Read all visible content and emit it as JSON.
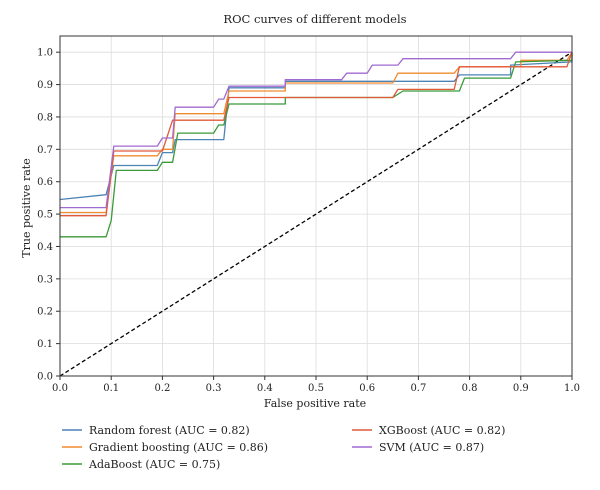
{
  "chart_data": {
    "type": "line",
    "title": "ROC curves of different models",
    "xlabel": "False positive rate",
    "ylabel": "True positive rate",
    "xlim": [
      0,
      1
    ],
    "ylim": [
      0,
      1.05
    ],
    "xticks": [
      "0.0",
      "0.1",
      "0.2",
      "0.3",
      "0.4",
      "0.5",
      "0.6",
      "0.7",
      "0.8",
      "0.9",
      "1.0"
    ],
    "yticks": [
      "0.0",
      "0.1",
      "0.2",
      "0.3",
      "0.4",
      "0.5",
      "0.6",
      "0.7",
      "0.8",
      "0.9",
      "1.0"
    ],
    "grid": true,
    "legend_placement": "bottom",
    "series": [
      {
        "name": "Random forest (AUC = 0.82)",
        "color": "#4c84b5",
        "points": [
          [
            0,
            0.545
          ],
          [
            0.09,
            0.56
          ],
          [
            0.105,
            0.65
          ],
          [
            0.19,
            0.65
          ],
          [
            0.2,
            0.69
          ],
          [
            0.22,
            0.69
          ],
          [
            0.225,
            0.73
          ],
          [
            0.32,
            0.73
          ],
          [
            0.33,
            0.89
          ],
          [
            0.44,
            0.89
          ],
          [
            0.44,
            0.91
          ],
          [
            0.66,
            0.91
          ],
          [
            0.77,
            0.91
          ],
          [
            0.78,
            0.93
          ],
          [
            0.88,
            0.93
          ],
          [
            0.88,
            0.96
          ],
          [
            1,
            0.97
          ],
          [
            1,
            1
          ]
        ]
      },
      {
        "name": "Gradient boosting (AUC = 0.86)",
        "color": "#f08b30",
        "points": [
          [
            0,
            0.505
          ],
          [
            0.09,
            0.505
          ],
          [
            0.105,
            0.68
          ],
          [
            0.19,
            0.68
          ],
          [
            0.2,
            0.7
          ],
          [
            0.22,
            0.7
          ],
          [
            0.225,
            0.81
          ],
          [
            0.32,
            0.81
          ],
          [
            0.33,
            0.88
          ],
          [
            0.44,
            0.88
          ],
          [
            0.44,
            0.905
          ],
          [
            0.65,
            0.905
          ],
          [
            0.66,
            0.935
          ],
          [
            0.77,
            0.935
          ],
          [
            0.78,
            0.955
          ],
          [
            0.9,
            0.955
          ],
          [
            0.9,
            0.975
          ],
          [
            0.99,
            0.975
          ],
          [
            1,
            1
          ]
        ]
      },
      {
        "name": "AdaBoost (AUC = 0.75)",
        "color": "#3a9a3a",
        "points": [
          [
            0,
            0.43
          ],
          [
            0.09,
            0.43
          ],
          [
            0.1,
            0.48
          ],
          [
            0.11,
            0.635
          ],
          [
            0.19,
            0.635
          ],
          [
            0.2,
            0.66
          ],
          [
            0.22,
            0.66
          ],
          [
            0.23,
            0.75
          ],
          [
            0.3,
            0.75
          ],
          [
            0.31,
            0.775
          ],
          [
            0.32,
            0.775
          ],
          [
            0.33,
            0.84
          ],
          [
            0.44,
            0.84
          ],
          [
            0.44,
            0.86
          ],
          [
            0.65,
            0.86
          ],
          [
            0.67,
            0.88
          ],
          [
            0.78,
            0.88
          ],
          [
            0.79,
            0.92
          ],
          [
            0.88,
            0.92
          ],
          [
            0.89,
            0.97
          ],
          [
            1,
            0.975
          ],
          [
            1,
            1
          ]
        ]
      },
      {
        "name": "XGBoost (AUC = 0.82)",
        "color": "#e05a3a",
        "points": [
          [
            0,
            0.495
          ],
          [
            0.09,
            0.495
          ],
          [
            0.105,
            0.695
          ],
          [
            0.2,
            0.695
          ],
          [
            0.22,
            0.79
          ],
          [
            0.32,
            0.79
          ],
          [
            0.33,
            0.86
          ],
          [
            0.65,
            0.86
          ],
          [
            0.66,
            0.885
          ],
          [
            0.77,
            0.885
          ],
          [
            0.78,
            0.955
          ],
          [
            0.99,
            0.955
          ],
          [
            1,
            1
          ]
        ]
      },
      {
        "name": "SVM (AUC = 0.87)",
        "color": "#a06ad0",
        "points": [
          [
            0,
            0.52
          ],
          [
            0.09,
            0.52
          ],
          [
            0.105,
            0.71
          ],
          [
            0.19,
            0.71
          ],
          [
            0.2,
            0.735
          ],
          [
            0.22,
            0.735
          ],
          [
            0.225,
            0.83
          ],
          [
            0.3,
            0.83
          ],
          [
            0.31,
            0.855
          ],
          [
            0.32,
            0.855
          ],
          [
            0.33,
            0.895
          ],
          [
            0.44,
            0.895
          ],
          [
            0.44,
            0.915
          ],
          [
            0.55,
            0.915
          ],
          [
            0.56,
            0.935
          ],
          [
            0.6,
            0.935
          ],
          [
            0.61,
            0.96
          ],
          [
            0.66,
            0.96
          ],
          [
            0.67,
            0.98
          ],
          [
            0.88,
            0.98
          ],
          [
            0.89,
            1.0
          ],
          [
            1,
            1.0
          ]
        ]
      }
    ],
    "reference_line": {
      "style": "dashed",
      "color": "#000000",
      "points": [
        [
          0,
          0
        ],
        [
          1,
          1
        ]
      ]
    }
  }
}
